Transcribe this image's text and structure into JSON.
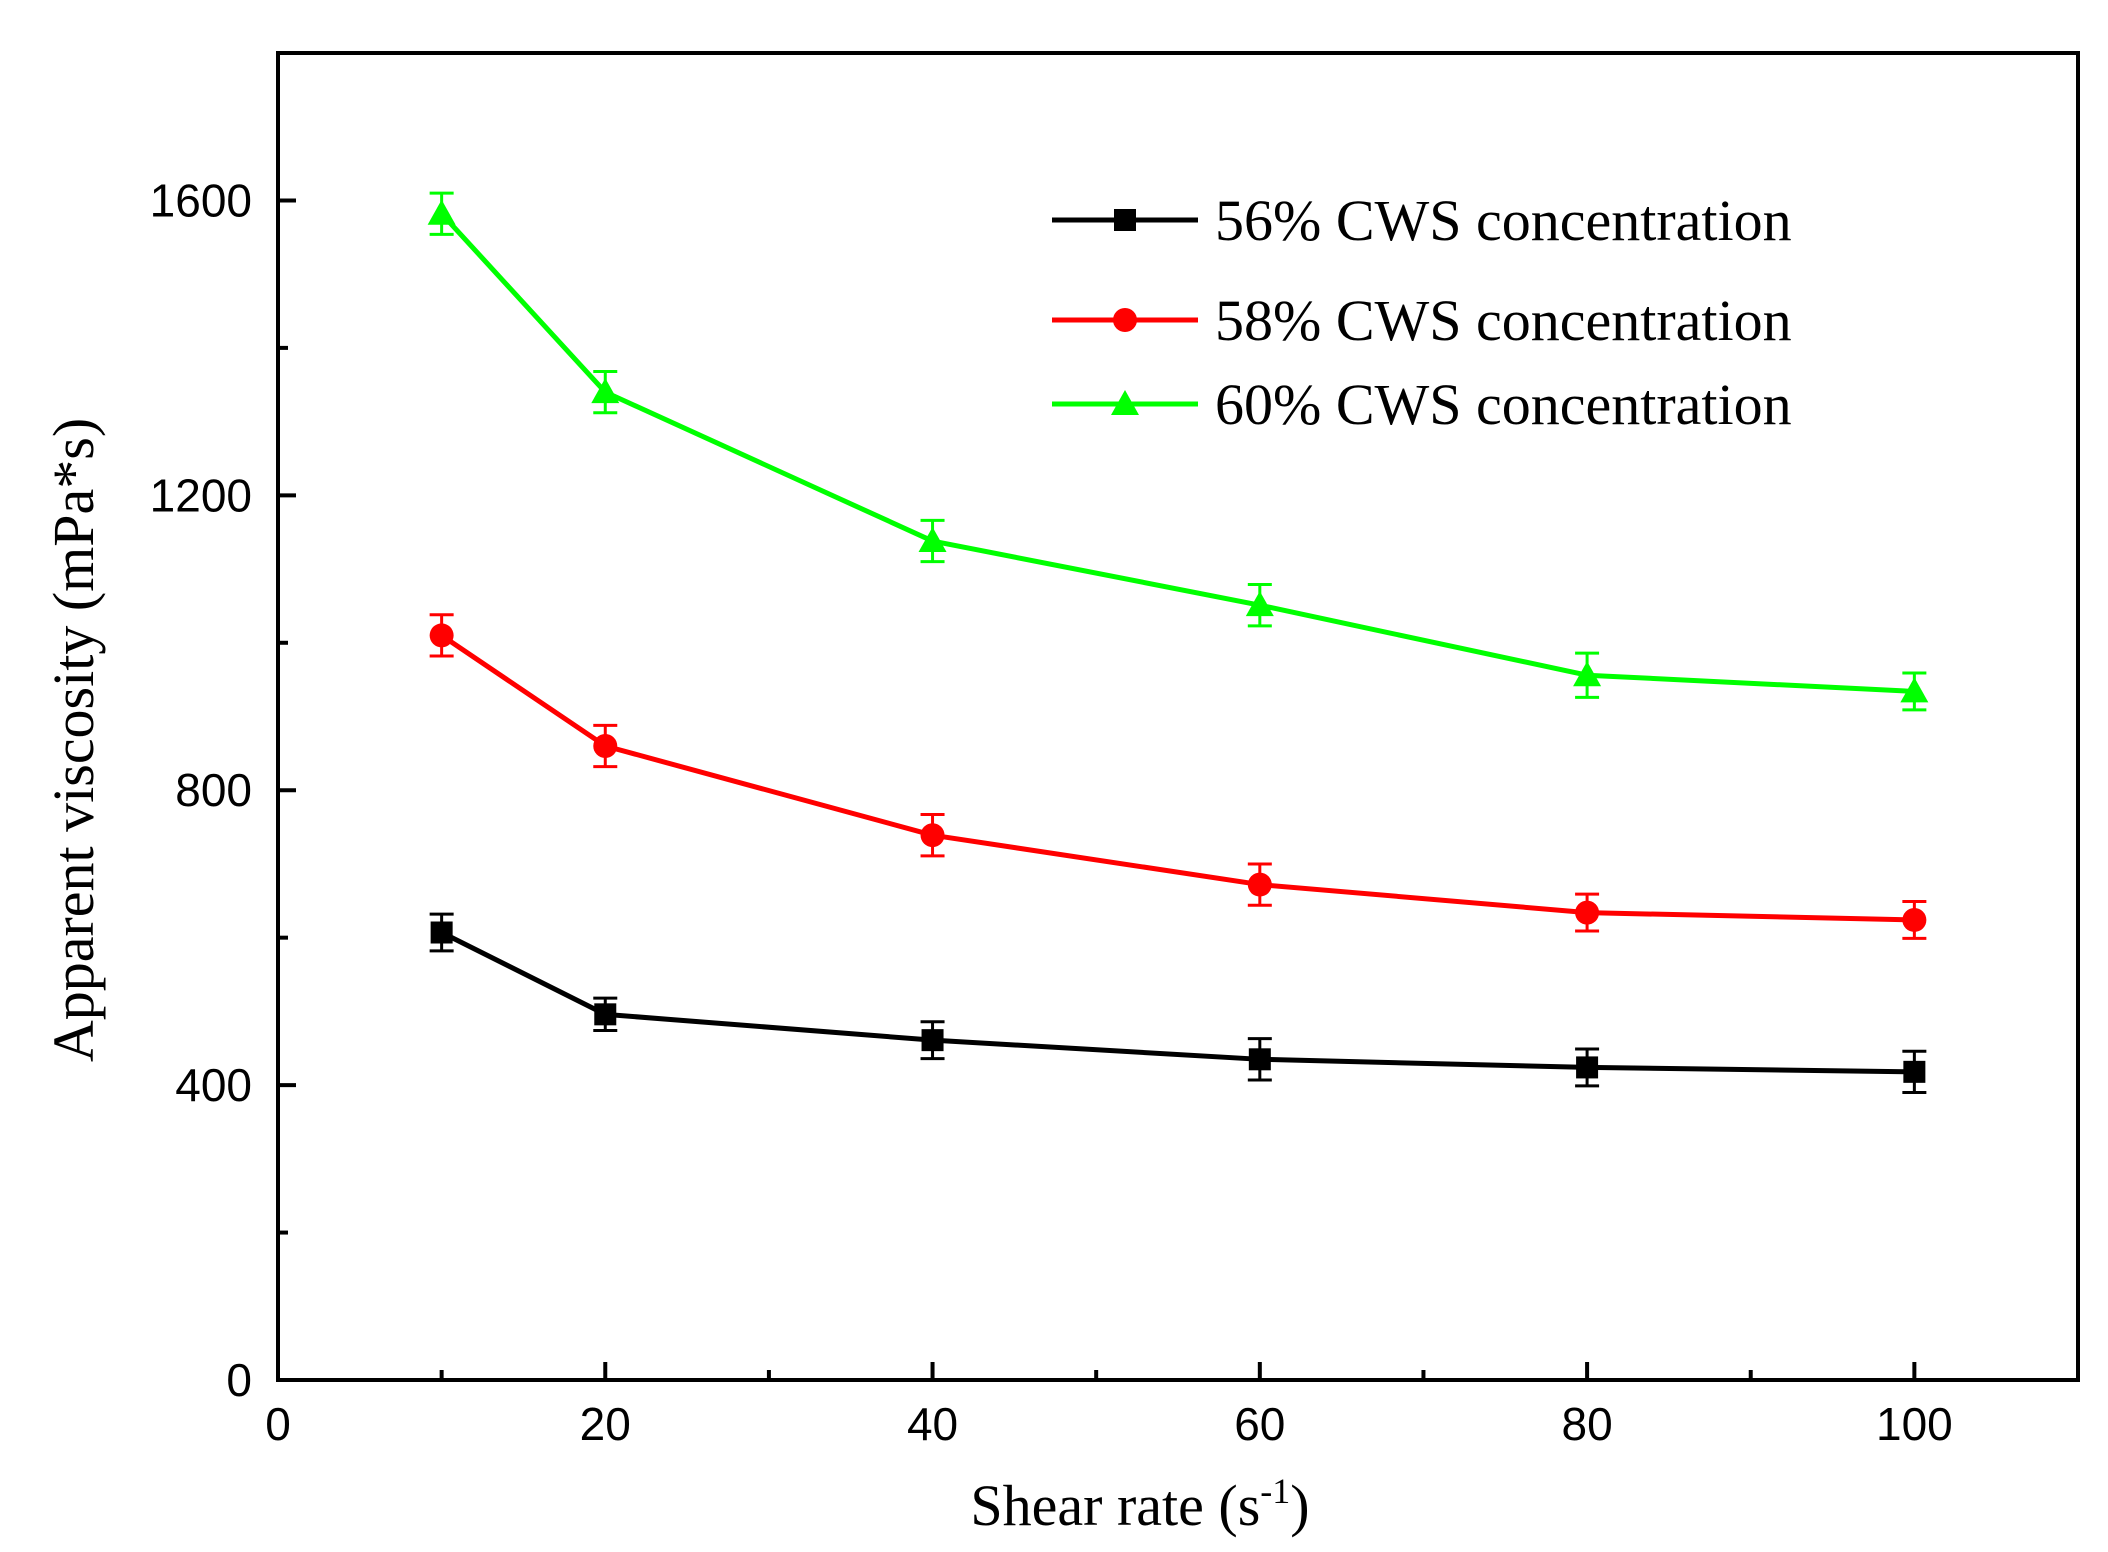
{
  "chart_data": {
    "type": "line",
    "title": "",
    "xlabel": "Shear rate (s",
    "xlabel_sup": "-1",
    "xlabel_close": ")",
    "ylabel": "Apparent viscosity (mPa*s)",
    "xlim": [
      0,
      110
    ],
    "ylim": [
      0,
      1800
    ],
    "x_ticks": [
      0,
      20,
      40,
      60,
      80,
      100
    ],
    "x_minor_ticks": [
      10,
      30,
      50,
      70,
      90,
      110
    ],
    "y_ticks": [
      0,
      400,
      800,
      1200,
      1600
    ],
    "y_minor_ticks": [
      200,
      600,
      1000,
      1400
    ],
    "legend_position": "top-right",
    "x": [
      10,
      20,
      40,
      60,
      80,
      100
    ],
    "series": [
      {
        "name": "56% CWS concentration",
        "color": "#000000",
        "marker": "square",
        "values": [
          607,
          496,
          461,
          435,
          424,
          418
        ],
        "errors": [
          25,
          22,
          25,
          28,
          25,
          28
        ]
      },
      {
        "name": "58% CWS concentration",
        "color": "#ff0000",
        "marker": "circle",
        "values": [
          1010,
          860,
          739,
          672,
          634,
          624
        ],
        "errors": [
          28,
          28,
          28,
          28,
          25,
          25
        ]
      },
      {
        "name": "60% CWS concentration",
        "color": "#00ff00",
        "marker": "triangle",
        "values": [
          1582,
          1340,
          1138,
          1051,
          956,
          934
        ],
        "errors": [
          28,
          28,
          28,
          28,
          30,
          25
        ]
      }
    ]
  }
}
